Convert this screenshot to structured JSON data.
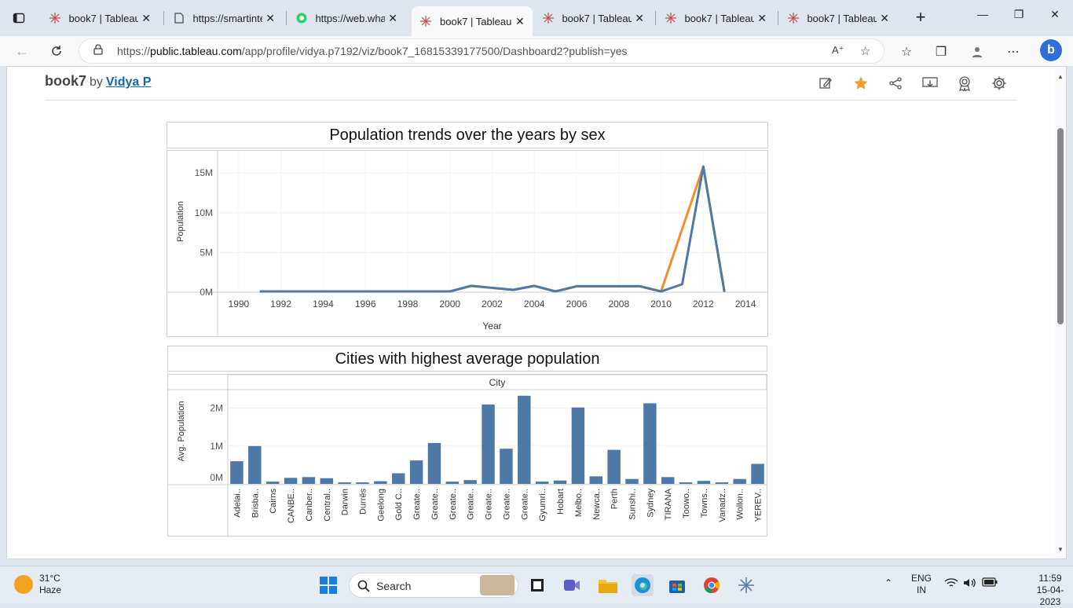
{
  "browser": {
    "tabs": [
      {
        "label": "book7 | Tableau P",
        "icon": "tableau-icon"
      },
      {
        "label": "https://smartinte",
        "icon": "page-icon"
      },
      {
        "label": "https://web.what",
        "icon": "whatsapp-icon"
      },
      {
        "label": "book7 | Tableau",
        "icon": "tableau-icon"
      },
      {
        "label": "book7 | Tableau P",
        "icon": "tableau-icon"
      },
      {
        "label": "book7 | Tableau P",
        "icon": "tableau-icon"
      },
      {
        "label": "book7 | Tableau P",
        "icon": "tableau-icon"
      }
    ],
    "active_tab": 3,
    "url_prefix": "https://",
    "url_host": "public.tableau.com",
    "url_path": "/app/profile/vidya.p7192/viz/book7_16815339177500/Dashboard2?publish=yes"
  },
  "page": {
    "workbook_title": "book7",
    "by_label": "by",
    "author": "Vidya P"
  },
  "chart1": {
    "title": "Population trends over the years by sex"
  },
  "chart2": {
    "title": "Cities with highest average population",
    "header": "City"
  },
  "chart_data": [
    {
      "type": "line",
      "title": "Population trends over the years by sex",
      "xlabel": "Year",
      "ylabel": "Population",
      "xlim": [
        1989,
        2015
      ],
      "ylim": [
        0,
        17000000
      ],
      "x_ticks": [
        "1990",
        "1992",
        "1994",
        "1996",
        "1998",
        "2000",
        "2002",
        "2004",
        "2006",
        "2008",
        "2010",
        "2012",
        "2014"
      ],
      "y_ticks": [
        "0M",
        "5M",
        "10M",
        "15M"
      ],
      "grid": true,
      "series": [
        {
          "color": "#f28e2b",
          "x": [
            1991,
            1992,
            1993,
            1994,
            1995,
            1996,
            1997,
            1998,
            1999,
            2000,
            2001,
            2002,
            2003,
            2004,
            2005,
            2006,
            2007,
            2008,
            2009,
            2010,
            2012,
            2013
          ],
          "y": [
            100000,
            100000,
            100000,
            100000,
            100000,
            100000,
            100000,
            100000,
            100000,
            100000,
            800000,
            550000,
            300000,
            800000,
            100000,
            750000,
            750000,
            750000,
            750000,
            100000,
            15800000,
            50000
          ]
        },
        {
          "color": "#4e79a7",
          "x": [
            1991,
            1992,
            1993,
            1994,
            1995,
            1996,
            1997,
            1998,
            1999,
            2000,
            2001,
            2002,
            2003,
            2004,
            2005,
            2006,
            2007,
            2008,
            2009,
            2010,
            2011,
            2012,
            2013
          ],
          "y": [
            100000,
            100000,
            100000,
            100000,
            100000,
            100000,
            100000,
            100000,
            100000,
            100000,
            800000,
            550000,
            300000,
            800000,
            100000,
            750000,
            750000,
            750000,
            750000,
            100000,
            1000000,
            15800000,
            50000
          ]
        }
      ]
    },
    {
      "type": "bar",
      "title": "Cities with highest average population",
      "xlabel": "City",
      "ylabel": "Avg. Population",
      "ylim": [
        0,
        2450000
      ],
      "y_ticks": [
        "0M",
        "1M",
        "2M"
      ],
      "color": "#4e79a7",
      "categories": [
        "Adelai..",
        "Brisba..",
        "Cairns",
        "CANBE..",
        "Canber..",
        "Central..",
        "Darwin",
        "Durrës",
        "Geelong",
        "Gold C..",
        "Greate..",
        "Greate..",
        "Greate..",
        "Greate..",
        "Greate..",
        "Greate..",
        "Greate..",
        "Gyumri..",
        "Hobart",
        "Melbo..",
        "Newca..",
        "Perth",
        "Sunshi..",
        "Sydney",
        "TIRANA",
        "Toowo..",
        "Towns..",
        "Vanadz..",
        "Wollon..",
        "YEREV.."
      ],
      "values": [
        600000,
        1000000,
        60000,
        160000,
        180000,
        150000,
        40000,
        40000,
        70000,
        280000,
        620000,
        1080000,
        60000,
        100000,
        2100000,
        930000,
        2330000,
        60000,
        90000,
        2020000,
        200000,
        900000,
        130000,
        2130000,
        180000,
        40000,
        80000,
        40000,
        130000,
        530000
      ]
    }
  ],
  "taskbar": {
    "temperature": "31°C",
    "condition": "Haze",
    "search_label": "Search",
    "lang": "ENG",
    "region": "IN",
    "time": "11:59",
    "date": "15-04-2023"
  }
}
